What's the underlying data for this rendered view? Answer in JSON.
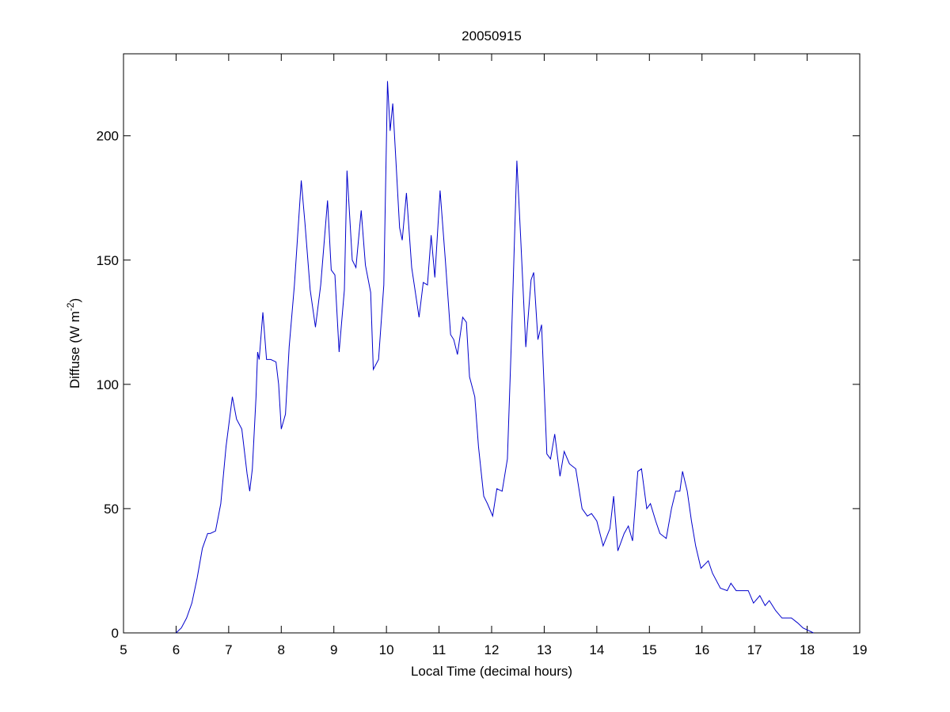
{
  "chart_data": {
    "type": "line",
    "title": "20050915",
    "xlabel": "Local Time (decimal hours)",
    "ylabel": [
      "Diffuse (W m",
      "-2",
      ")"
    ],
    "x": [
      6.0,
      6.1,
      6.2,
      6.3,
      6.4,
      6.5,
      6.6,
      6.65,
      6.75,
      6.85,
      6.95,
      7.07,
      7.15,
      7.25,
      7.35,
      7.4,
      7.45,
      7.52,
      7.55,
      7.58,
      7.65,
      7.72,
      7.8,
      7.9,
      7.95,
      8.0,
      8.08,
      8.15,
      8.25,
      8.38,
      8.45,
      8.55,
      8.65,
      8.75,
      8.88,
      8.95,
      9.02,
      9.1,
      9.2,
      9.25,
      9.35,
      9.42,
      9.52,
      9.6,
      9.7,
      9.75,
      9.85,
      9.95,
      10.02,
      10.07,
      10.12,
      10.18,
      10.25,
      10.3,
      10.38,
      10.48,
      10.62,
      10.7,
      10.78,
      10.85,
      10.92,
      11.02,
      11.12,
      11.22,
      11.28,
      11.35,
      11.45,
      11.52,
      11.58,
      11.68,
      11.75,
      11.85,
      11.92,
      12.02,
      12.1,
      12.2,
      12.3,
      12.38,
      12.48,
      12.55,
      12.65,
      12.75,
      12.8,
      12.88,
      12.95,
      13.05,
      13.12,
      13.2,
      13.3,
      13.38,
      13.48,
      13.6,
      13.72,
      13.82,
      13.9,
      14.0,
      14.12,
      14.25,
      14.32,
      14.4,
      14.52,
      14.6,
      14.68,
      14.78,
      14.85,
      14.95,
      15.02,
      15.12,
      15.2,
      15.32,
      15.42,
      15.5,
      15.58,
      15.63,
      15.72,
      15.8,
      15.88,
      15.98,
      16.12,
      16.2,
      16.35,
      16.48,
      16.55,
      16.65,
      16.78,
      16.88,
      16.98,
      17.1,
      17.2,
      17.28,
      17.4,
      17.52,
      17.7,
      17.82,
      17.92,
      18.02,
      18.12
    ],
    "series": [
      {
        "name": "Diffuse",
        "color": "#0000cc",
        "values": [
          0,
          2,
          6,
          12,
          22,
          34,
          40,
          40,
          41,
          52,
          75,
          95,
          86,
          82,
          64,
          57,
          66,
          95,
          113,
          110,
          129,
          110,
          110,
          109,
          100,
          82,
          88,
          115,
          140,
          182,
          165,
          138,
          123,
          140,
          174,
          146,
          144,
          113,
          138,
          186,
          150,
          147,
          170,
          148,
          137,
          106,
          110,
          140,
          222,
          202,
          213,
          190,
          163,
          158,
          177,
          147,
          127,
          141,
          140,
          160,
          143,
          178,
          150,
          120,
          118,
          112,
          127,
          125,
          103,
          95,
          75,
          55,
          52,
          47,
          58,
          57,
          70,
          120,
          190,
          160,
          115,
          142,
          145,
          118,
          124,
          72,
          70,
          80,
          63,
          73,
          68,
          66,
          50,
          47,
          48,
          45,
          35,
          42,
          55,
          33,
          40,
          43,
          37,
          65,
          66,
          50,
          52,
          45,
          40,
          38,
          50,
          57,
          57,
          65,
          57,
          45,
          35,
          26,
          29,
          24,
          18,
          17,
          20,
          17,
          17,
          17,
          12,
          15,
          11,
          13,
          9,
          6,
          6,
          4,
          2,
          1,
          0
        ]
      }
    ],
    "xlim": [
      5,
      19
    ],
    "xticks": [
      5,
      6,
      7,
      8,
      9,
      10,
      11,
      12,
      13,
      14,
      15,
      16,
      17,
      18,
      19
    ],
    "ylim": [
      0,
      233
    ],
    "yticks": [
      0,
      50,
      100,
      150,
      200
    ],
    "grid": false
  }
}
